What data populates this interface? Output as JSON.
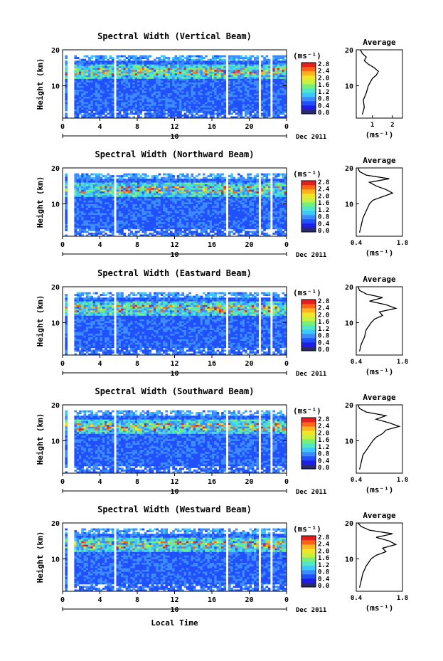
{
  "figure": {
    "xlabel": "Local Time",
    "date_label": "Dec 2011",
    "day_label": "10",
    "ylabel": "Height (km)",
    "cb_unit": "(ms⁻¹)",
    "avg_title": "Average",
    "avg_xunit": "(ms⁻¹)"
  },
  "colors": {
    "scale": [
      "#2a2a6e",
      "#1e1ee6",
      "#2050ff",
      "#3c8cff",
      "#3cc8ff",
      "#50e6c8",
      "#78f078",
      "#c8f03c",
      "#f0e628",
      "#ffb41e",
      "#ff6414",
      "#e61e1e"
    ],
    "gap": "#ffffff"
  },
  "chart_data": [
    {
      "type": "heatmap",
      "title": "Spectral Width (Vertical Beam)",
      "xlabel": "Local Time",
      "ylabel": "Height (km)",
      "xlim": [
        0,
        24
      ],
      "ylim": [
        1,
        20
      ],
      "xticks": [
        "0",
        "4",
        "8",
        "12",
        "16",
        "20",
        "0"
      ],
      "yticks": [
        "10",
        "20"
      ],
      "colorbar": {
        "unit": "(ms⁻¹)",
        "ticks": [
          "0.0",
          "0.4",
          "0.8",
          "1.2",
          "1.6",
          "2.0",
          "2.4",
          "2.8"
        ],
        "range": [
          0,
          2.8
        ]
      },
      "data_gaps_hours": [
        0.6,
        1.0,
        5.6,
        17.6,
        21.1,
        22.4
      ],
      "average_profile": {
        "title": "Average",
        "xlim": [
          0.2,
          2.5
        ],
        "xticks": [
          "1",
          "2"
        ],
        "xunit": "(ms⁻¹)",
        "yticks": [
          "10",
          "20"
        ],
        "height_km": [
          2,
          4,
          6,
          8,
          10,
          11,
          12,
          13,
          14,
          15,
          16,
          17,
          18,
          19,
          20
        ],
        "value": [
          0.5,
          0.6,
          0.55,
          0.7,
          0.8,
          0.9,
          1.0,
          1.2,
          1.3,
          1.1,
          0.8,
          0.6,
          0.7,
          0.5,
          0.4
        ]
      }
    },
    {
      "type": "heatmap",
      "title": "Spectral Width (Northward Beam)",
      "xlabel": "Local Time",
      "ylabel": "Height (km)",
      "xlim": [
        0,
        24
      ],
      "ylim": [
        1,
        20
      ],
      "xticks": [
        "0",
        "4",
        "8",
        "12",
        "16",
        "20",
        "0"
      ],
      "yticks": [
        "10",
        "20"
      ],
      "colorbar": {
        "unit": "(ms⁻¹)",
        "ticks": [
          "0.0",
          "0.4",
          "0.8",
          "1.2",
          "1.6",
          "2.0",
          "2.4",
          "2.8"
        ],
        "range": [
          0,
          2.8
        ]
      },
      "data_gaps_hours": [
        0.6,
        1.0,
        5.6,
        17.6,
        21.1,
        22.4
      ],
      "average_profile": {
        "title": "Average",
        "xlim": [
          0.4,
          1.8
        ],
        "xticks": [
          "0.4",
          "1.8"
        ],
        "xunit": "(ms⁻¹)",
        "yticks": [
          "10",
          "20"
        ],
        "height_km": [
          2,
          4,
          6,
          8,
          10,
          11,
          12,
          13,
          14,
          15,
          16,
          17,
          18,
          19,
          20
        ],
        "value": [
          0.5,
          0.55,
          0.6,
          0.7,
          0.8,
          0.9,
          1.2,
          1.5,
          1.3,
          1.0,
          0.8,
          1.4,
          0.7,
          0.5,
          0.45
        ]
      }
    },
    {
      "type": "heatmap",
      "title": "Spectral Width (Eastward Beam)",
      "xlabel": "Local Time",
      "ylabel": "Height (km)",
      "xlim": [
        0,
        24
      ],
      "ylim": [
        1,
        20
      ],
      "xticks": [
        "0",
        "4",
        "8",
        "12",
        "16",
        "20",
        "0"
      ],
      "yticks": [
        "10",
        "20"
      ],
      "colorbar": {
        "unit": "(ms⁻¹)",
        "ticks": [
          "0.0",
          "0.4",
          "0.8",
          "1.2",
          "1.6",
          "2.0",
          "2.4",
          "2.8"
        ],
        "range": [
          0,
          2.8
        ]
      },
      "data_gaps_hours": [
        0.6,
        1.0,
        5.6,
        17.6,
        21.1,
        22.4
      ],
      "average_profile": {
        "title": "Average",
        "xlim": [
          0.4,
          1.8
        ],
        "xticks": [
          "0.4",
          "1.8"
        ],
        "xunit": "(ms⁻¹)",
        "yticks": [
          "10",
          "20"
        ],
        "height_km": [
          2,
          4,
          6,
          8,
          10,
          11,
          12,
          13,
          14,
          15,
          16,
          17,
          18,
          19,
          20
        ],
        "value": [
          0.5,
          0.55,
          0.65,
          0.7,
          0.85,
          0.95,
          1.2,
          1.1,
          1.6,
          1.3,
          0.8,
          1.2,
          0.7,
          0.5,
          0.45
        ]
      }
    },
    {
      "type": "heatmap",
      "title": "Spectral Width (Southward Beam)",
      "xlabel": "Local Time",
      "ylabel": "Height (km)",
      "xlim": [
        0,
        24
      ],
      "ylim": [
        1,
        20
      ],
      "xticks": [
        "0",
        "4",
        "8",
        "12",
        "16",
        "20",
        "0"
      ],
      "yticks": [
        "10",
        "20"
      ],
      "colorbar": {
        "unit": "(ms⁻¹)",
        "ticks": [
          "0.0",
          "0.4",
          "0.8",
          "1.2",
          "1.6",
          "2.0",
          "2.4",
          "2.8"
        ],
        "range": [
          0,
          2.8
        ]
      },
      "data_gaps_hours": [
        0.6,
        1.0,
        5.6,
        17.6,
        21.1,
        22.4
      ],
      "average_profile": {
        "title": "Average",
        "xlim": [
          0.4,
          1.8
        ],
        "xticks": [
          "0.4",
          "1.8"
        ],
        "xunit": "(ms⁻¹)",
        "yticks": [
          "10",
          "20"
        ],
        "height_km": [
          2,
          4,
          6,
          8,
          10,
          11,
          12,
          13,
          14,
          15,
          16,
          17,
          18,
          19,
          20
        ],
        "value": [
          0.5,
          0.55,
          0.6,
          0.75,
          0.9,
          1.0,
          1.2,
          1.3,
          1.7,
          1.4,
          1.0,
          1.3,
          0.7,
          0.5,
          0.45
        ]
      }
    },
    {
      "type": "heatmap",
      "title": "Spectral Width (Westward Beam)",
      "xlabel": "Local Time",
      "ylabel": "Height (km)",
      "xlim": [
        0,
        24
      ],
      "ylim": [
        1,
        20
      ],
      "xticks": [
        "0",
        "4",
        "8",
        "12",
        "16",
        "20",
        "0"
      ],
      "yticks": [
        "10",
        "20"
      ],
      "colorbar": {
        "unit": "(ms⁻¹)",
        "ticks": [
          "0.0",
          "0.4",
          "0.8",
          "1.2",
          "1.6",
          "2.0",
          "2.4",
          "2.8"
        ],
        "range": [
          0,
          2.8
        ]
      },
      "data_gaps_hours": [
        0.6,
        1.0,
        5.6,
        17.6,
        21.1,
        22.4
      ],
      "average_profile": {
        "title": "Average",
        "xlim": [
          0.4,
          1.8
        ],
        "xticks": [
          "0.4",
          "1.8"
        ],
        "xunit": "(ms⁻¹)",
        "yticks": [
          "10",
          "20"
        ],
        "height_km": [
          2,
          4,
          6,
          8,
          10,
          11,
          12,
          13,
          14,
          15,
          16,
          17,
          18,
          19,
          20
        ],
        "value": [
          0.5,
          0.55,
          0.6,
          0.7,
          0.85,
          1.0,
          1.3,
          1.2,
          1.6,
          1.4,
          1.0,
          1.5,
          0.8,
          0.55,
          0.45
        ]
      }
    }
  ]
}
